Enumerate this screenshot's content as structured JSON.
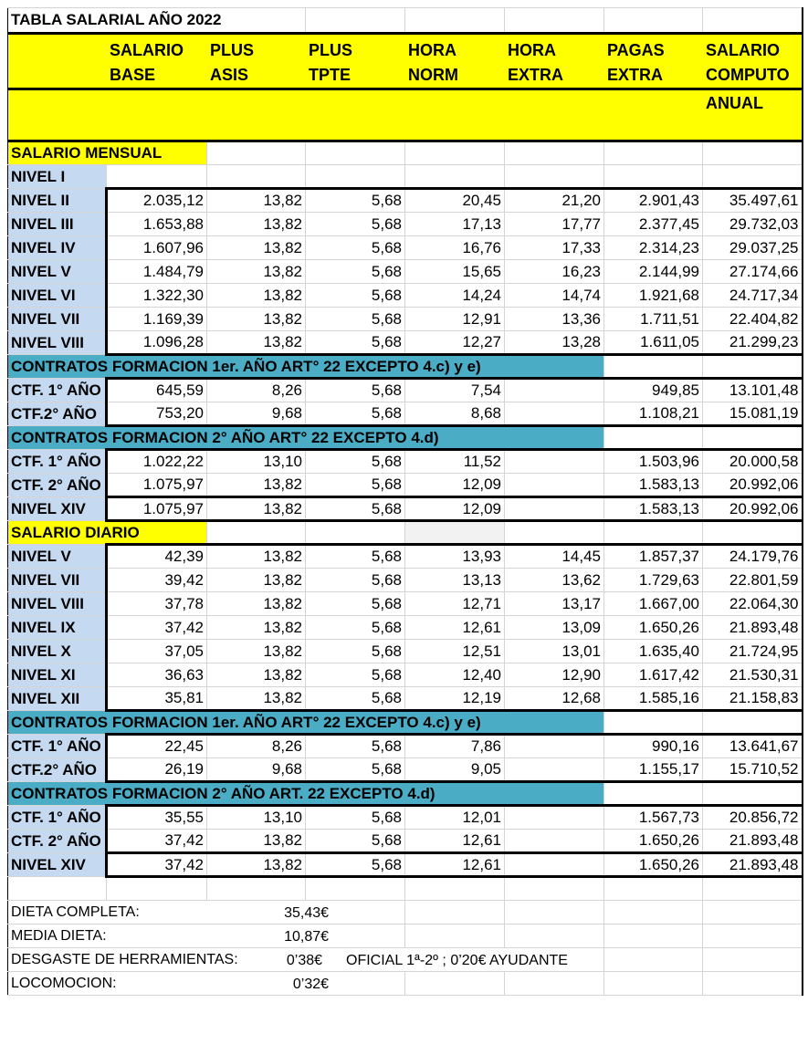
{
  "title": "TABLA SALARIAL  AÑO 2022",
  "headers": [
    {
      "l1": "SALARIO",
      "l2": "BASE",
      "l3": ""
    },
    {
      "l1": "PLUS",
      "l2": "ASIS",
      "l3": ""
    },
    {
      "l1": "PLUS",
      "l2": "TPTE",
      "l3": ""
    },
    {
      "l1": "HORA",
      "l2": "NORM",
      "l3": ""
    },
    {
      "l1": "HORA",
      "l2": "EXTRA",
      "l3": ""
    },
    {
      "l1": "PAGAS",
      "l2": "EXTRA",
      "l3": ""
    },
    {
      "l1": "SALARIO",
      "l2": "COMPUTO",
      "l3": "ANUAL"
    }
  ],
  "rows": [
    {
      "type": "yellow",
      "label": "SALARIO MENSUAL"
    },
    {
      "type": "data",
      "label": "NIVEL  I",
      "values": [
        "",
        "",
        "",
        "",
        "",
        "",
        ""
      ],
      "plain": true
    },
    {
      "type": "data",
      "label": "NIVEL  II",
      "values": [
        "2.035,12",
        "13,82",
        "5,68",
        "20,45",
        "21,20",
        "2.901,43",
        "35.497,61"
      ],
      "g": "first"
    },
    {
      "type": "data",
      "label": "NIVEL  III",
      "values": [
        "1.653,88",
        "13,82",
        "5,68",
        "17,13",
        "17,77",
        "2.377,45",
        "29.732,03"
      ]
    },
    {
      "type": "data",
      "label": "NIVEL  IV",
      "values": [
        "1.607,96",
        "13,82",
        "5,68",
        "16,76",
        "17,33",
        "2.314,23",
        "29.037,25"
      ]
    },
    {
      "type": "data",
      "label": "NIVEL  V",
      "values": [
        "1.484,79",
        "13,82",
        "5,68",
        "15,65",
        "16,23",
        "2.144,99",
        "27.174,66"
      ]
    },
    {
      "type": "data",
      "label": "NIVEL  VI",
      "values": [
        "1.322,30",
        "13,82",
        "5,68",
        "14,24",
        "14,74",
        "1.921,68",
        "24.717,34"
      ]
    },
    {
      "type": "data",
      "label": "NIVEL  VII",
      "values": [
        "1.169,39",
        "13,82",
        "5,68",
        "12,91",
        "13,36",
        "1.711,51",
        "22.404,82"
      ]
    },
    {
      "type": "data",
      "label": "NIVEL  VIII",
      "values": [
        "1.096,28",
        "13,82",
        "5,68",
        "12,27",
        "13,28",
        "1.611,05",
        "21.299,23"
      ],
      "g": "last"
    },
    {
      "type": "teal",
      "label": "CONTRATOS  FORMACION 1er. AÑO ART° 22 EXCEPTO 4.c) y e)"
    },
    {
      "type": "data",
      "label": "CTF. 1° AÑO",
      "values": [
        "645,59",
        "8,26",
        "5,68",
        "7,54",
        "",
        "949,85",
        "13.101,48"
      ],
      "g": "first"
    },
    {
      "type": "data",
      "label": "CTF.2° AÑO",
      "values": [
        "753,20",
        "9,68",
        "5,68",
        "8,68",
        "",
        "1.108,21",
        "15.081,19"
      ],
      "g": "last"
    },
    {
      "type": "teal",
      "label": "CONTRATOS  FORMACION 2° AÑO ART° 22 EXCEPTO 4.d)"
    },
    {
      "type": "data",
      "label": "CTF. 1° AÑO",
      "values": [
        "1.022,22",
        "13,10",
        "5,68",
        "11,52",
        "",
        "1.503,96",
        "20.000,58"
      ],
      "g": "first"
    },
    {
      "type": "data",
      "label": "CTF. 2° AÑO",
      "values": [
        "1.075,97",
        "13,82",
        "5,68",
        "12,09",
        "",
        "1.583,13",
        "20.992,06"
      ],
      "g": "last"
    },
    {
      "type": "data",
      "label": "NIVEL  XIV",
      "values": [
        "1.075,97",
        "13,82",
        "5,68",
        "12,09",
        "",
        "1.583,13",
        "20.992,06"
      ],
      "g": "both"
    },
    {
      "type": "yellow",
      "label": "SALARIO DIARIO",
      "gray": true
    },
    {
      "type": "data",
      "label": "NIVEL  V",
      "values": [
        "42,39",
        "13,82",
        "5,68",
        "13,93",
        "14,45",
        "1.857,37",
        "24.179,76"
      ],
      "g": "first"
    },
    {
      "type": "data",
      "label": "NIVEL VII",
      "values": [
        "39,42",
        "13,82",
        "5,68",
        "13,13",
        "13,62",
        "1.729,63",
        "22.801,59"
      ]
    },
    {
      "type": "data",
      "label": "NIVEL  VIII",
      "values": [
        "37,78",
        "13,82",
        "5,68",
        "12,71",
        "13,17",
        "1.667,00",
        "22.064,30"
      ]
    },
    {
      "type": "data",
      "label": "NIVEL  IX",
      "values": [
        "37,42",
        "13,82",
        "5,68",
        "12,61",
        "13,09",
        "1.650,26",
        "21.893,48"
      ]
    },
    {
      "type": "data",
      "label": "NIVEL  X",
      "values": [
        "37,05",
        "13,82",
        "5,68",
        "12,51",
        "13,01",
        "1.635,40",
        "21.724,95"
      ]
    },
    {
      "type": "data",
      "label": "NIVEL  XI",
      "values": [
        "36,63",
        "13,82",
        "5,68",
        "12,40",
        "12,90",
        "1.617,42",
        "21.530,31"
      ]
    },
    {
      "type": "data",
      "label": "NIVEL  XII",
      "values": [
        "35,81",
        "13,82",
        "5,68",
        "12,19",
        "12,68",
        "1.585,16",
        "21.158,83"
      ],
      "g": "last"
    },
    {
      "type": "teal",
      "label": "CONTRATOS  FORMACION 1er. AÑO ART° 22 EXCEPTO 4.c) y e)"
    },
    {
      "type": "data",
      "label": "CTF. 1° AÑO",
      "values": [
        "22,45",
        "8,26",
        "5,68",
        "7,86",
        "",
        "990,16",
        "13.641,67"
      ],
      "g": "first"
    },
    {
      "type": "data",
      "label": "CTF.2° AÑO",
      "values": [
        "26,19",
        "9,68",
        "5,68",
        "9,05",
        "",
        "1.155,17",
        "15.710,52"
      ],
      "g": "last"
    },
    {
      "type": "teal",
      "label": "CONTRATOS FORMACION 2° AÑO ART. 22  EXCEPTO 4.d)"
    },
    {
      "type": "data",
      "label": "CTF. 1° AÑO",
      "values": [
        "35,55",
        "13,10",
        "5,68",
        "12,01",
        "",
        "1.567,73",
        "20.856,72"
      ],
      "g": "first"
    },
    {
      "type": "data",
      "label": "CTF. 2° AÑO",
      "values": [
        "37,42",
        "13,82",
        "5,68",
        "12,61",
        "",
        "1.650,26",
        "21.893,48"
      ],
      "g": "last"
    },
    {
      "type": "data",
      "label": "NIVEL  XIV",
      "values": [
        "37,42",
        "13,82",
        "5,68",
        "12,61",
        "",
        "1.650,26",
        "21.893,48"
      ],
      "g": "both"
    },
    {
      "type": "blank"
    }
  ],
  "notes": [
    {
      "label": "DIETA COMPLETA:",
      "value": "35,43€"
    },
    {
      "label": "MEDIA DIETA:",
      "value": "10,87€"
    },
    {
      "label": "DESGASTE DE HERRAMIENTAS:",
      "value": "0’38€",
      "extra": "OFICIAL 1ª-2º ;  0’20€ AYUDANTE"
    },
    {
      "label": "LOCOMOCION:",
      "value": "0’32€"
    }
  ]
}
